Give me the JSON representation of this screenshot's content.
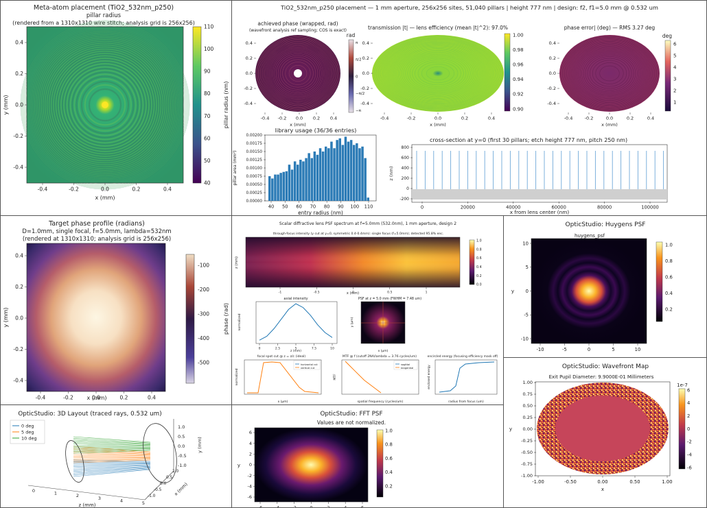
{
  "colors": {
    "viridis": [
      "#440154",
      "#3b528b",
      "#21918c",
      "#5ec962",
      "#fde725"
    ],
    "inferno": [
      "#000004",
      "#420a68",
      "#932667",
      "#dd513a",
      "#fca50a",
      "#fcffa4"
    ],
    "bar": "#2c7bb6",
    "legend": [
      "#1f77b4",
      "#ff7f0e",
      "#2ca02c"
    ]
  },
  "p1": {
    "title": "Meta-atom placement (TiO2_532nm_p250)",
    "subtitle": "pillar radius",
    "note": "(rendered from a 1310x1310 wire stitch; analysis grid is 256x256)",
    "xlabel": "x (mm)",
    "ylabel": "y (mm)",
    "cblabel": "pillar radius (nm)",
    "xticks": [
      "-0.4",
      "-0.2",
      "0.0",
      "0.2",
      "0.4"
    ],
    "yticks": [
      "0.4",
      "0.2",
      "0.0",
      "-0.2",
      "-0.4"
    ],
    "cbticks": [
      "110",
      "100",
      "90",
      "80",
      "70",
      "60",
      "50",
      "40"
    ]
  },
  "p2": {
    "header": "TiO2_532nm_p250 placement  —  1 mm aperture, 256x256 sites, 51,040 pillars  |  height 777 nm  |  design: f2, f1=5.0 mm @ 0.532 um",
    "a_title": "achieved phase (wrapped, rad)",
    "a_note": "(wavefront analysis ref sampling; COS is exact)",
    "a_cb": "rad",
    "a_cbticks": [
      "π",
      "π/2",
      "0",
      "−π/2",
      "−π"
    ],
    "b_title": "transmission |t|  —  lens efficiency (mean |t|^2): 97.0%",
    "b_cbticks": [
      "1.00",
      "0.98",
      "0.96",
      "0.94",
      "0.92",
      "0.90"
    ],
    "c_title": "phase error| (deg)  —  RMS 3.27 deg",
    "c_cb": "deg",
    "c_cbticks": [
      "6",
      "5",
      "4",
      "3",
      "2",
      "1"
    ],
    "xticks": [
      "-0.4",
      "-0.2",
      "0.0",
      "0.2",
      "0.4"
    ],
    "yticks": [
      "0.4",
      "0.2",
      "0.0",
      "-0.2",
      "-0.4"
    ],
    "xlabel": "x (mm)",
    "ylabel": "y (mm)",
    "hist_title": "library usage (36/36 entries)",
    "hist_xlabel": "entry radius (nm)",
    "hist_ylabel": "pillar area (mm²)",
    "hist_yticks": [
      "0.00200",
      "0.00175",
      "0.00150",
      "0.00125",
      "0.00100",
      "0.00075",
      "0.00050",
      "0.00025",
      "0.00000"
    ],
    "hist_xticks": [
      "40",
      "50",
      "60",
      "70",
      "80",
      "90",
      "100",
      "110"
    ],
    "cs_title": "cross-section at y=0 (first 30 pillars; etch height 777 nm, pitch 250 nm)",
    "cs_xlabel": "x from lens center (nm)",
    "cs_ylabel": "z (nm)",
    "cs_xticks": [
      "0",
      "20000",
      "40000",
      "60000",
      "80000",
      "100000"
    ],
    "cs_yticks": [
      "800",
      "600",
      "400",
      "200",
      "0",
      "-200"
    ]
  },
  "p3": {
    "title": "Target phase profile (radians)",
    "line2": "D=1.0mm, single focal, f=5.0mm, lambda=532nm",
    "line3": "(rendered at 1310x1310; analysis grid is 256x256)",
    "xlabel": "x (mm)",
    "ylabel": "y (mm)",
    "cblabel": "phase (rad)",
    "xticks": [
      "-0.4",
      "-0.2",
      "0.0",
      "0.2",
      "0.4"
    ],
    "yticks": [
      "0.4",
      "0.2",
      "0.0",
      "-0.2",
      "-0.4"
    ],
    "cbticks": [
      "-100",
      "-200",
      "-300",
      "-400",
      "-500"
    ]
  },
  "p4": {
    "title": "Scalar diffractive lens PSF spectrum at f=5.0mm (532.0nm), 1 mm aperture, design 2",
    "top_title": "through-focus intensity (y cut at y=0, symmetric 0.4-0.4mm): single focus (f=5.0mm); detected 95.8% enc.",
    "top_xlabel": "x (mm)",
    "top_ylabel": "z (mm)",
    "top_cbticks": [
      "1.0",
      "0.8",
      "0.6",
      "0.4",
      "0.2",
      "0.0"
    ],
    "top_xticks": [
      "-1",
      "-0.5",
      "0",
      "0.5",
      "1"
    ],
    "axial_title": "axial intensity",
    "axial_xlabel": "z (mm)",
    "axial_ylabel": "normalized",
    "axial_xticks": [
      "0",
      "2.5",
      "5",
      "7.5",
      "10"
    ],
    "psf_title": "PSF at z = 5.0 mm (FWHM = 7.48 um)",
    "psf_xlabel": "x (μm)",
    "psf_ylabel": "y (μm)",
    "spot_title": "focal spot cut @ z = z/c (ideal)",
    "spot_legend": [
      "horizontal cut",
      "vertical cut"
    ],
    "spot_xlabel": "x (μm)",
    "spot_ylabel": "normalized",
    "mtf_title": "MTF @ f (cutoff 2NA/lambda = 3.76 cycles/um)",
    "mtf_legend": [
      "sagittal",
      "tangential"
    ],
    "mtf_xlabel": "spatial frequency (cycles/um)",
    "mtf_ylabel": "MTF",
    "ee_title": "encircled energy (focusing efficiency mask off)",
    "ee_xlabel": "radius from focus (um)",
    "ee_ylabel": "enclosed energy"
  },
  "p5": {
    "header": "OpticStudio: Huygens PSF",
    "title": "huygens_psf",
    "xticks": [
      "-10",
      "-5",
      "0",
      "5",
      "10"
    ],
    "yticks": [
      "10",
      "5",
      "0",
      "-5",
      "-10"
    ],
    "ylabel": "y",
    "cbticks": [
      "1.0",
      "0.8",
      "0.6",
      "0.4",
      "0.2"
    ]
  },
  "p6": {
    "header": "OpticStudio: 3D Layout (traced rays, 0.532 um)",
    "legend": [
      "0 deg",
      "5 deg",
      "10 deg"
    ],
    "zlabel": "z (mm)",
    "xlabel": "x (mm)",
    "ylabel": "y (mm)",
    "zticks": [
      "0",
      "1",
      "2",
      "3",
      "4",
      "5"
    ],
    "yticks": [
      "1.0",
      "0.5",
      "0.0",
      "-0.5",
      "-1.0"
    ]
  },
  "p7": {
    "header": "OpticStudio: FFT PSF",
    "note": "Values are not normalized.",
    "xticks": [
      "-6",
      "-4",
      "-2",
      "0",
      "2",
      "4",
      "6"
    ],
    "yticks": [
      "6",
      "4",
      "2",
      "0",
      "-2",
      "-4",
      "-6"
    ],
    "ylabel": "y",
    "cbticks": [
      "1.0",
      "0.8",
      "0.6",
      "0.4",
      "0.2"
    ]
  },
  "p8": {
    "header": "OpticStudio: Wavefront Map",
    "title": "Exit Pupil Diameter: 9.9000E-01 Millimeters",
    "xticks": [
      "-1.00",
      "-0.50",
      "0.00",
      "0.50",
      "1.00"
    ],
    "yticks": [
      "1.00",
      "0.75",
      "0.50",
      "0.25",
      "0.00",
      "-0.25",
      "-0.50",
      "-0.75",
      "-1.00"
    ],
    "xlabel": "x",
    "ylabel": "y",
    "cbexp": "1e-7",
    "cbticks": [
      "6",
      "4",
      "2",
      "0",
      "-2",
      "-4",
      "-6"
    ]
  },
  "chart_data": [
    {
      "type": "heatmap",
      "title": "Meta-atom placement (TiO2_532nm_p250)",
      "xlabel": "x (mm)",
      "ylabel": "y (mm)",
      "xlim": [
        -0.5,
        0.5
      ],
      "ylim": [
        -0.5,
        0.5
      ],
      "colorbar_range": [
        40,
        110
      ]
    },
    {
      "type": "bar",
      "title": "library usage (36/36 entries)",
      "xlabel": "entry radius (nm)",
      "ylabel": "pillar area (mm²)",
      "x": [
        40,
        42,
        44,
        46,
        48,
        50,
        52,
        54,
        56,
        58,
        60,
        62,
        64,
        66,
        68,
        70,
        72,
        74,
        76,
        78,
        80,
        82,
        84,
        86,
        88,
        90,
        92,
        94,
        96,
        98,
        100,
        102,
        104,
        106,
        108,
        110
      ],
      "values": [
        0.00075,
        0.00068,
        0.0008,
        0.0008,
        0.00085,
        0.00088,
        0.0009,
        0.0011,
        0.00095,
        0.0012,
        0.0011,
        0.00125,
        0.0012,
        0.0013,
        0.00145,
        0.0013,
        0.0015,
        0.0014,
        0.0016,
        0.0015,
        0.00165,
        0.0016,
        0.0018,
        0.0016,
        0.00185,
        0.0019,
        0.0017,
        0.00195,
        0.0018,
        0.00185,
        0.0017,
        0.00175,
        0.0016,
        0.00165,
        0.0013,
        0.0001
      ],
      "ylim": [
        0,
        0.002
      ]
    },
    {
      "type": "line",
      "title": "axial intensity",
      "xlabel": "z (mm)",
      "ylabel": "normalized",
      "x": [
        0,
        1,
        2,
        3,
        4,
        5,
        6,
        7,
        8,
        9,
        10
      ],
      "values": [
        0.05,
        0.15,
        0.35,
        0.6,
        0.85,
        1.0,
        0.9,
        0.7,
        0.45,
        0.25,
        0.12
      ]
    },
    {
      "type": "line",
      "title": "MTF @ f (cutoff 2NA/lambda = 3.76 cycles/um)",
      "xlabel": "spatial frequency (cycles/um)",
      "ylabel": "MTF",
      "x": [
        0,
        1,
        2,
        3.76
      ],
      "series": [
        {
          "name": "sagittal",
          "values": [
            1.0,
            0.7,
            0.4,
            0.0
          ]
        },
        {
          "name": "tangential",
          "values": [
            1.0,
            0.7,
            0.4,
            0.0
          ]
        }
      ]
    }
  ]
}
